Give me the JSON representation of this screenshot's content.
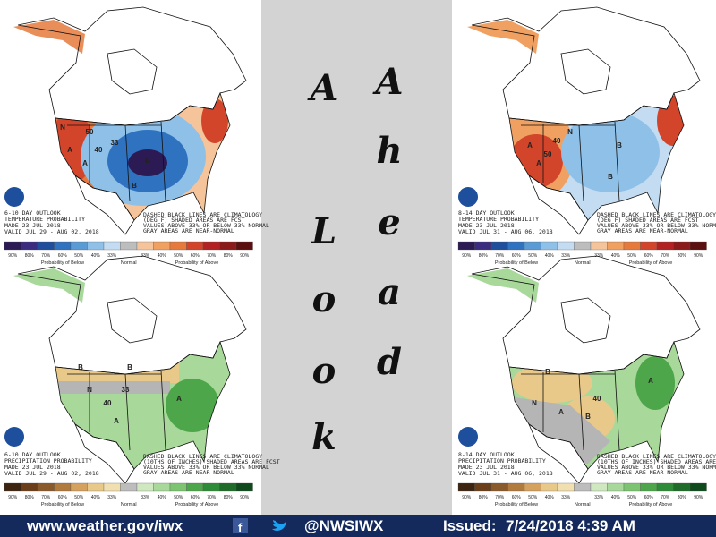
{
  "panels": [
    {
      "caption": [
        "6-10 DAY OUTLOOK",
        "TEMPERATURE PROBABILITY",
        "MADE 23 JUL 2018",
        "VALID JUL 29 - AUG 02, 2018"
      ],
      "note": [
        "DASHED BLACK LINES ARE CLIMATOLOGY",
        "(DEG F) SHADED AREAS ARE FCST",
        "VALUES ABOVE 33% OR BELOW 33% NORMAL",
        "GRAY AREAS ARE NEAR-NORMAL"
      ],
      "legend_labels": [
        "90%",
        "80%",
        "70%",
        "60%",
        "50%",
        "40%",
        "33%",
        "33%",
        "40%",
        "50%",
        "60%",
        "70%",
        "80%",
        "90%"
      ],
      "legend_colors": [
        "#2c1a55",
        "#3a2d80",
        "#1e4e9c",
        "#2f72c0",
        "#5a9bd5",
        "#8fc0e8",
        "#c3dcf2",
        "#f5c49b",
        "#f0a060",
        "#e57a3c",
        "#d3452a",
        "#b22222",
        "#8b1a1a",
        "#5c0f0f"
      ],
      "legend_below": "Probability of Below",
      "legend_normal": "Normal",
      "legend_above": "Probability of Above",
      "map_labels": [
        "A",
        "A",
        "B",
        "B",
        "33",
        "40",
        "50",
        "N"
      ]
    },
    {
      "caption": [
        "8-14 DAY OUTLOOK",
        "TEMPERATURE PROBABILITY",
        "MADE 23 JUL 2018",
        "VALID JUL 31 - AUG 06, 2018"
      ],
      "note": [
        "DASHED BLACK LINES ARE CLIMATOLOGY",
        "(DEG F) SHADED AREAS ARE FCST",
        "VALUES ABOVE 33% OR BELOW 33% NORMAL",
        "GRAY AREAS ARE NEAR-NORMAL"
      ],
      "legend_labels": [
        "90%",
        "80%",
        "70%",
        "60%",
        "50%",
        "40%",
        "33%",
        "33%",
        "40%",
        "50%",
        "60%",
        "70%",
        "80%",
        "90%"
      ],
      "legend_colors": [
        "#2c1a55",
        "#3a2d80",
        "#1e4e9c",
        "#2f72c0",
        "#5a9bd5",
        "#8fc0e8",
        "#c3dcf2",
        "#f5c49b",
        "#f0a060",
        "#e57a3c",
        "#d3452a",
        "#b22222",
        "#8b1a1a",
        "#5c0f0f"
      ],
      "legend_below": "Probability of Below",
      "legend_normal": "Normal",
      "legend_above": "Probability of Above",
      "map_labels": [
        "A",
        "A",
        "B",
        "B",
        "N",
        "40",
        "50"
      ]
    },
    {
      "caption": [
        "6-10 DAY OUTLOOK",
        "PRECIPITATION PROBABILITY",
        "MADE 23 JUL 2018",
        "VALID JUL 29 - AUG 02, 2018"
      ],
      "note": [
        "DASHED BLACK LINES ARE CLIMATOLOGY",
        "(10THS OF INCHES) SHADED AREAS ARE FCST",
        "VALUES ABOVE 33% OR BELOW 33% NORMAL",
        "GRAY AREAS ARE NEAR-NORMAL"
      ],
      "legend_labels": [
        "90%",
        "80%",
        "70%",
        "60%",
        "50%",
        "40%",
        "33%",
        "33%",
        "40%",
        "50%",
        "60%",
        "70%",
        "80%",
        "90%"
      ],
      "legend_colors": [
        "#3d2410",
        "#6b3e1a",
        "#8b5a2b",
        "#b07b3c",
        "#d4a25e",
        "#e8c98a",
        "#f2dfb0",
        "#cfe8c0",
        "#a8d89a",
        "#7cc470",
        "#4ea64a",
        "#2e8b37",
        "#1e6b2a",
        "#0f4a1c"
      ],
      "legend_below": "Probability of Below",
      "legend_normal": "Normal",
      "legend_above": "Probability of Above",
      "map_labels": [
        "B",
        "B",
        "A",
        "A",
        "N",
        "33",
        "40"
      ]
    },
    {
      "caption": [
        "8-14 DAY OUTLOOK",
        "PRECIPITATION PROBABILITY",
        "MADE 23 JUL 2018",
        "VALID JUL 31 - AUG 06, 2018"
      ],
      "note": [
        "DASHED BLACK LINES ARE CLIMATOLOGY",
        "(10THS OF INCHES) SHADED AREAS ARE FCST",
        "VALUES ABOVE 33% OR BELOW 33% NORMAL",
        "GRAY AREAS ARE NEAR-NORMAL"
      ],
      "legend_labels": [
        "90%",
        "80%",
        "70%",
        "60%",
        "50%",
        "40%",
        "33%",
        "33%",
        "40%",
        "50%",
        "60%",
        "70%",
        "80%",
        "90%"
      ],
      "legend_colors": [
        "#3d2410",
        "#6b3e1a",
        "#8b5a2b",
        "#b07b3c",
        "#d4a25e",
        "#e8c98a",
        "#f2dfb0",
        "#cfe8c0",
        "#a8d89a",
        "#7cc470",
        "#4ea64a",
        "#2e8b37",
        "#1e6b2a",
        "#0f4a1c"
      ],
      "legend_below": "Probability of Below",
      "legend_normal": "Normal",
      "legend_above": "Probability of Above",
      "map_labels": [
        "B",
        "B",
        "A",
        "A",
        "N",
        "40"
      ]
    }
  ],
  "center": {
    "look": [
      "A",
      "L",
      "o",
      "o",
      "k"
    ],
    "ahead": [
      "A",
      "h",
      "e",
      "a",
      "d"
    ]
  },
  "footer": {
    "url": "www.weather.gov/iwx",
    "handle": "@NWSIWX",
    "issued_label": "Issued:",
    "issued": "7/24/2018 4:39 AM"
  }
}
